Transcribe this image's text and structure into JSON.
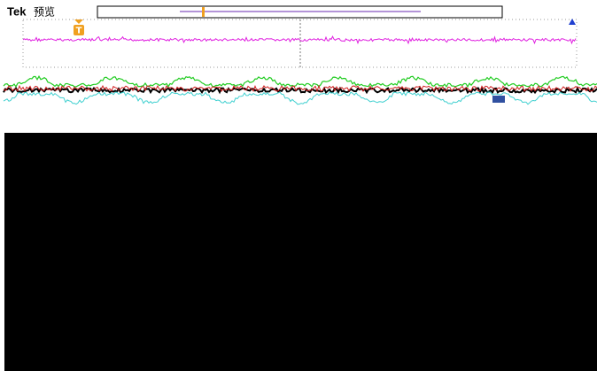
{
  "header": {
    "brand": "Tek",
    "mode": "预览"
  },
  "markers": {
    "trigger": "T"
  }
}
